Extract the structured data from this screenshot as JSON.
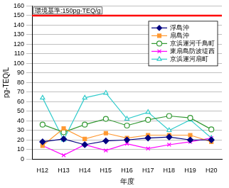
{
  "chart_data": {
    "type": "line",
    "x_label": "年度",
    "y_label": "pg-TEQ/L",
    "categories": [
      "H12",
      "H13",
      "H14",
      "H15",
      "H16",
      "H17",
      "H18",
      "H19",
      "H20"
    ],
    "series": [
      {
        "name": "浮島沖",
        "color": "#000080",
        "marker": "diamond",
        "values": [
          18,
          21,
          15,
          19,
          20,
          22,
          23,
          20,
          20
        ]
      },
      {
        "name": "扇島沖",
        "color": "#ff9933",
        "marker": "square",
        "values": [
          14,
          32,
          21,
          27,
          22,
          25,
          25,
          25,
          18
        ]
      },
      {
        "name": "京浜運河千鳥町",
        "color": "#339933",
        "marker": "circle",
        "values": [
          36,
          28,
          36,
          42,
          35,
          41,
          45,
          43,
          31
        ]
      },
      {
        "name": "東扇島防波堤西",
        "color": "#ff00ff",
        "marker": "x",
        "values": [
          14,
          4,
          15,
          9,
          16,
          11,
          15,
          18,
          22
        ]
      },
      {
        "name": "京浜運河扇町",
        "color": "#33cccc",
        "marker": "triangle",
        "values": [
          64,
          20,
          64,
          69,
          42,
          49,
          30,
          41,
          22
        ]
      }
    ],
    "annotations": [
      {
        "text": "環境基準:150pg-TEQ/g",
        "value": 150,
        "color": "#ff0000"
      }
    ],
    "ylim": [
      0,
      160
    ],
    "yticks": [
      0,
      10,
      20,
      30,
      40,
      50,
      60,
      70,
      80,
      90,
      100,
      110,
      120,
      130,
      140,
      150,
      160
    ],
    "grid": true,
    "legend": "upper right"
  }
}
